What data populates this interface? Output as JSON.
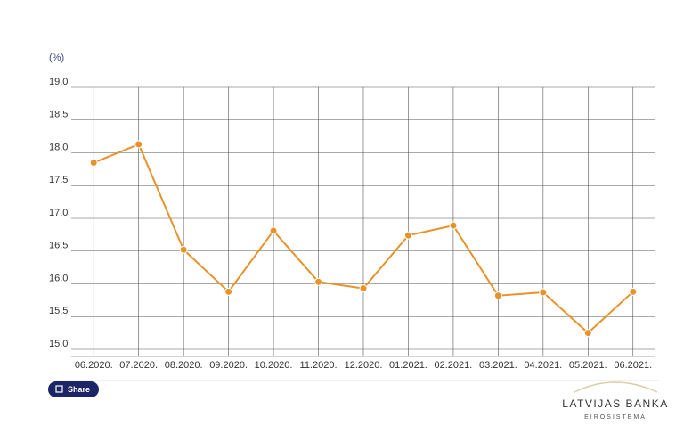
{
  "chart_data": {
    "type": "line",
    "y_label": "(%)",
    "categories": [
      "06.2020.",
      "07.2020.",
      "08.2020.",
      "09.2020.",
      "10.2020.",
      "11.2020.",
      "12.2020.",
      "01.2021.",
      "02.2021.",
      "03.2021.",
      "04.2021.",
      "05.2021.",
      "06.2021."
    ],
    "values": [
      17.85,
      18.13,
      16.52,
      15.88,
      16.81,
      16.03,
      15.93,
      16.74,
      16.89,
      15.82,
      15.87,
      15.25,
      15.88
    ],
    "color": "#e8922a",
    "ylim": [
      15,
      19
    ],
    "yticks": [
      {
        "value": 15,
        "label": "15.0"
      },
      {
        "value": 15.5,
        "label": "15.5"
      },
      {
        "value": 16,
        "label": "16.0"
      },
      {
        "value": 16.5,
        "label": "16.5"
      },
      {
        "value": 17,
        "label": "17.0"
      },
      {
        "value": 17.5,
        "label": "17.5"
      },
      {
        "value": 18,
        "label": "18.0"
      },
      {
        "value": 18.5,
        "label": "18.5"
      },
      {
        "value": 19,
        "label": "19.0"
      }
    ],
    "grid": true
  },
  "share_button": "Share",
  "logo": {
    "name": "LATVIJAS BANKA",
    "subtitle": "EIROSISTĒMA"
  }
}
